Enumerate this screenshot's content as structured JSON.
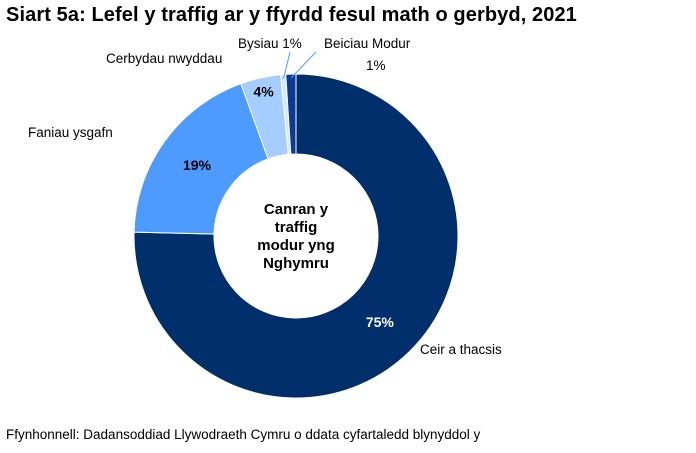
{
  "chart_data": {
    "type": "pie",
    "variant": "donut",
    "title": "Siart 5a: Lefel y traffig ar y ffyrdd fesul math o gerbyd, 2021",
    "center_label": [
      "Canran y",
      "traffig",
      "modur yng",
      "Nghymru"
    ],
    "unit": "%",
    "slices": [
      {
        "name": "Ceir a thacsis",
        "value": 75,
        "label": "75%",
        "color": "#002f6c",
        "label_color": "#ffffff"
      },
      {
        "name": "Faniau ysgafn",
        "value": 19,
        "label": "19%",
        "color": "#4d9bff",
        "label_color": "#000000"
      },
      {
        "name": "Cerbydau nwyddau",
        "value": 4,
        "label": "4%",
        "color": "#a6cdff",
        "label_color": "#000000"
      },
      {
        "name": "Bysiau",
        "value": 0.5,
        "label": "1%",
        "color": "#d6e8ff",
        "label_color": "#000000"
      },
      {
        "name": "Beiciau Modur",
        "value": 1,
        "label": "1%",
        "color": "#0a3a94",
        "label_color": "#000000"
      }
    ]
  },
  "source_note": "Ffynhonnell: Dadansoddiad Llywodraeth Cymru o ddata cyfartaledd blynyddol y"
}
